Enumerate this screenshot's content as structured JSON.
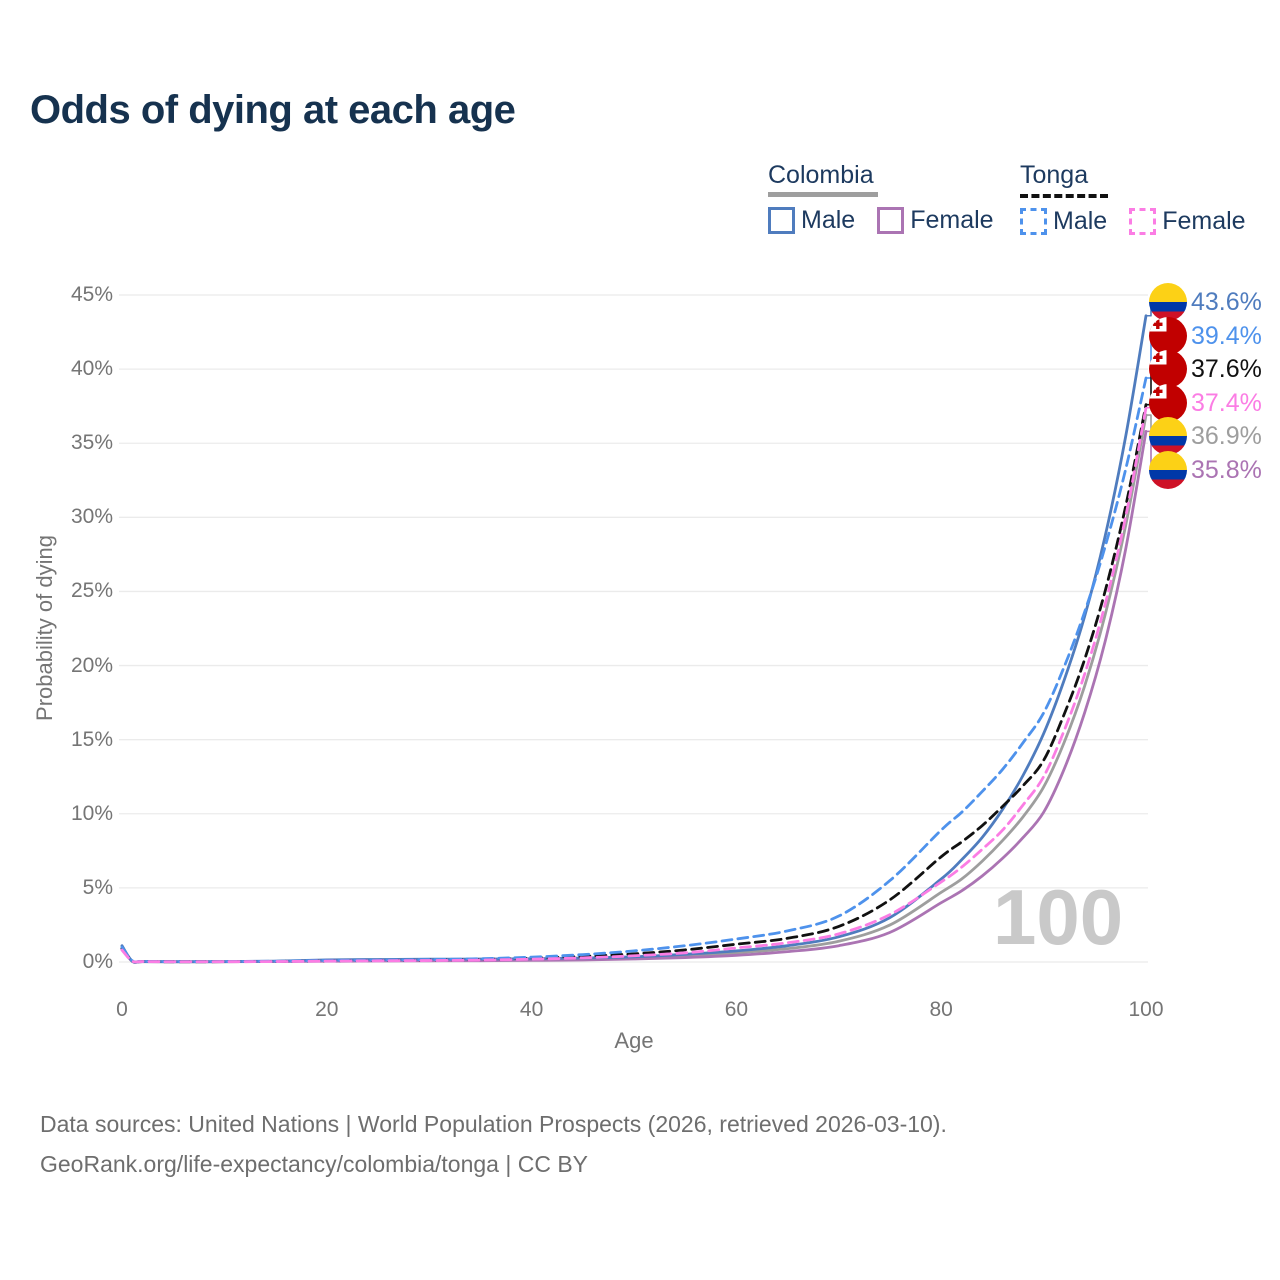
{
  "title": "Odds of dying at each age",
  "legend": {
    "colombia": {
      "title": "Colombia",
      "male": "Male",
      "female": "Female"
    },
    "tonga": {
      "title": "Tonga",
      "male": "Male",
      "female": "Female"
    }
  },
  "axes": {
    "y_title": "Probability of dying",
    "x_title": "Age",
    "y_ticks": [
      "0%",
      "5%",
      "10%",
      "15%",
      "20%",
      "25%",
      "30%",
      "35%",
      "40%",
      "45%"
    ],
    "x_ticks": [
      "0",
      "20",
      "40",
      "60",
      "80",
      "100"
    ]
  },
  "watermark": "100",
  "footer": {
    "line1": "Data sources: United Nations | World Population Prospects (2026, retrieved 2026-03-10).",
    "line2": "GeoRank.org/life-expectancy/colombia/tonga | CC BY"
  },
  "colors": {
    "title_text": "#16324f",
    "legend_text": "#1d3a5f",
    "axis_text": "#757575",
    "grid": "#ebebeb",
    "watermark": "#c9c9c9",
    "footer_text": "#6e6e6e"
  },
  "chart_data": {
    "type": "line",
    "title": "Odds of dying at each age",
    "xlabel": "Age",
    "ylabel": "Probability of dying",
    "xlim": [
      0,
      100
    ],
    "ylim": [
      0,
      45
    ],
    "unit": "%",
    "grid": "horizontal",
    "x": [
      0,
      1,
      2,
      5,
      10,
      15,
      20,
      25,
      30,
      35,
      40,
      45,
      50,
      55,
      60,
      65,
      70,
      75,
      80,
      82,
      84,
      86,
      88,
      90,
      92,
      94,
      96,
      98,
      100
    ],
    "series": [
      {
        "id": "colombia_both",
        "name": "Colombia",
        "country": "colombia",
        "style": "solid",
        "color": "#9e9e9e",
        "values": [
          1.0,
          0.05,
          0.025,
          0.016,
          0.02,
          0.04,
          0.09,
          0.12,
          0.13,
          0.14,
          0.17,
          0.21,
          0.28,
          0.42,
          0.62,
          0.9,
          1.4,
          2.5,
          4.7,
          5.6,
          6.8,
          8.2,
          9.8,
          11.8,
          14.8,
          18.6,
          23.4,
          29.4,
          36.9
        ],
        "end_value": 36.9
      },
      {
        "id": "colombia_female",
        "name": "Colombia Female",
        "country": "colombia",
        "style": "solid",
        "color": "#ab74b3",
        "values": [
          0.9,
          0.045,
          0.022,
          0.015,
          0.018,
          0.03,
          0.05,
          0.07,
          0.08,
          0.09,
          0.11,
          0.14,
          0.2,
          0.3,
          0.45,
          0.7,
          1.1,
          2.0,
          4.0,
          4.8,
          5.8,
          7.0,
          8.4,
          10.1,
          13.0,
          16.8,
          21.6,
          27.8,
          35.8
        ],
        "end_value": 35.8
      },
      {
        "id": "colombia_male",
        "name": "Colombia Male",
        "country": "colombia",
        "style": "solid",
        "color": "#4f7cbe",
        "values": [
          1.1,
          0.06,
          0.03,
          0.02,
          0.025,
          0.06,
          0.14,
          0.17,
          0.19,
          0.2,
          0.22,
          0.27,
          0.35,
          0.52,
          0.75,
          1.1,
          1.7,
          3.0,
          5.6,
          6.9,
          8.4,
          10.3,
          12.6,
          15.4,
          19.0,
          23.3,
          28.7,
          35.4,
          43.6
        ],
        "end_value": 43.6
      },
      {
        "id": "tonga_both",
        "name": "Tonga",
        "country": "tonga",
        "style": "dashed",
        "color": "#111111",
        "values": [
          0.9,
          0.07,
          0.035,
          0.02,
          0.025,
          0.04,
          0.08,
          0.1,
          0.13,
          0.18,
          0.26,
          0.38,
          0.55,
          0.82,
          1.2,
          1.6,
          2.4,
          4.2,
          7.1,
          8.1,
          9.2,
          10.5,
          11.9,
          13.6,
          16.7,
          20.4,
          25.0,
          30.7,
          37.6
        ],
        "end_value": 37.6
      },
      {
        "id": "tonga_male",
        "name": "Tonga Male",
        "country": "tonga",
        "style": "dashed",
        "color": "#4e92ec",
        "values": [
          1.0,
          0.08,
          0.04,
          0.025,
          0.03,
          0.05,
          0.1,
          0.12,
          0.16,
          0.22,
          0.33,
          0.5,
          0.75,
          1.1,
          1.55,
          2.1,
          3.1,
          5.5,
          8.9,
          10.1,
          11.5,
          13.0,
          14.8,
          16.8,
          19.9,
          23.6,
          28.0,
          33.2,
          39.4
        ],
        "end_value": 39.4
      },
      {
        "id": "tonga_female",
        "name": "Tonga Female",
        "country": "tonga",
        "style": "dashed",
        "color": "#fb7de4",
        "values": [
          0.8,
          0.06,
          0.03,
          0.018,
          0.02,
          0.03,
          0.06,
          0.08,
          0.1,
          0.13,
          0.19,
          0.28,
          0.42,
          0.62,
          0.95,
          1.3,
          1.9,
          3.2,
          5.4,
          6.4,
          7.6,
          8.9,
          10.6,
          12.5,
          15.6,
          19.4,
          24.1,
          30.0,
          37.4
        ],
        "end_value": 37.4
      }
    ]
  },
  "end_labels": [
    {
      "value": "43.6%",
      "series": "colombia_male",
      "country": "colombia"
    },
    {
      "value": "39.4%",
      "series": "tonga_male",
      "country": "tonga"
    },
    {
      "value": "37.6%",
      "series": "tonga_both",
      "country": "tonga"
    },
    {
      "value": "37.4%",
      "series": "tonga_female",
      "country": "tonga"
    },
    {
      "value": "36.9%",
      "series": "colombia_both",
      "country": "colombia"
    },
    {
      "value": "35.8%",
      "series": "colombia_female",
      "country": "colombia"
    }
  ],
  "flags": {
    "colombia": {
      "yellow": "#fcd116",
      "blue": "#0038a8",
      "red": "#ce1126"
    },
    "tonga": {
      "red": "#c10000",
      "white": "#ffffff"
    }
  }
}
